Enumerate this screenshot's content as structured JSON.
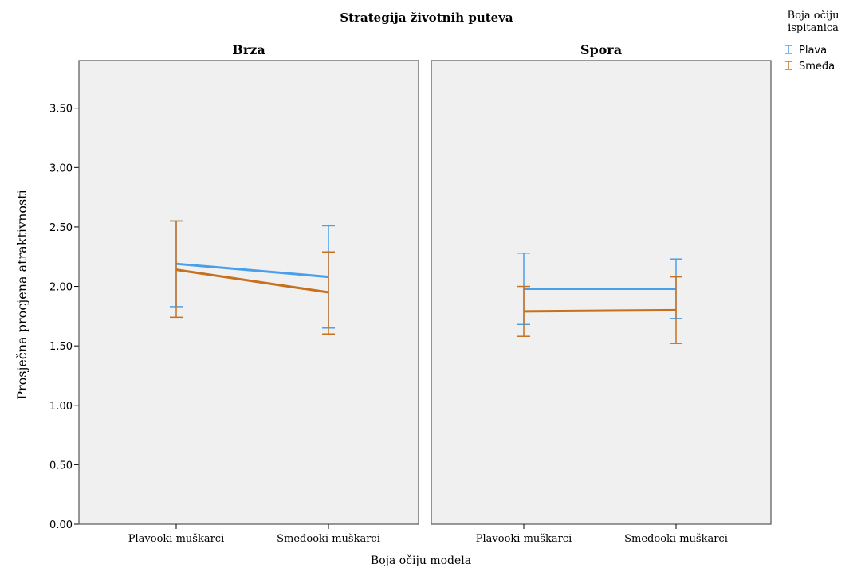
{
  "chart_data": {
    "type": "line",
    "title": "Strategija životnih puteva",
    "xlabel": "Boja očiju modela",
    "ylabel": "Prosječna procjena atraktivnosti",
    "ylim": [
      0,
      3.9
    ],
    "yticks": [
      0.0,
      0.5,
      1.0,
      1.5,
      2.0,
      2.5,
      3.0,
      3.5
    ],
    "ytick_labels": [
      "0.00",
      "0.50",
      "1.00",
      "1.50",
      "2.00",
      "2.50",
      "3.00",
      "3.50"
    ],
    "categories": [
      "Plavooki muškarci",
      "Smeđooki muškarci"
    ],
    "grid": false,
    "error_bars": true,
    "legend": {
      "title_line1": "Boja očiju",
      "title_line2": "ispitanica",
      "position": "top-right"
    },
    "panels": [
      {
        "name": "Brza",
        "series": [
          {
            "name": "Plava",
            "color": "#4a9fea",
            "values": [
              2.19,
              2.08
            ],
            "error_low": [
              1.83,
              1.65
            ],
            "error_high": [
              2.55,
              2.51
            ]
          },
          {
            "name": "Smeđa",
            "color": "#c8701e",
            "values": [
              2.14,
              1.95
            ],
            "error_low": [
              1.74,
              1.6
            ],
            "error_high": [
              2.55,
              2.29
            ]
          }
        ]
      },
      {
        "name": "Spora",
        "series": [
          {
            "name": "Plava",
            "color": "#4a9fea",
            "values": [
              1.98,
              1.98
            ],
            "error_low": [
              1.68,
              1.73
            ],
            "error_high": [
              2.28,
              2.23
            ]
          },
          {
            "name": "Smeđa",
            "color": "#c8701e",
            "values": [
              1.79,
              1.8
            ],
            "error_low": [
              1.58,
              1.52
            ],
            "error_high": [
              2.0,
              2.08
            ]
          }
        ]
      }
    ]
  }
}
